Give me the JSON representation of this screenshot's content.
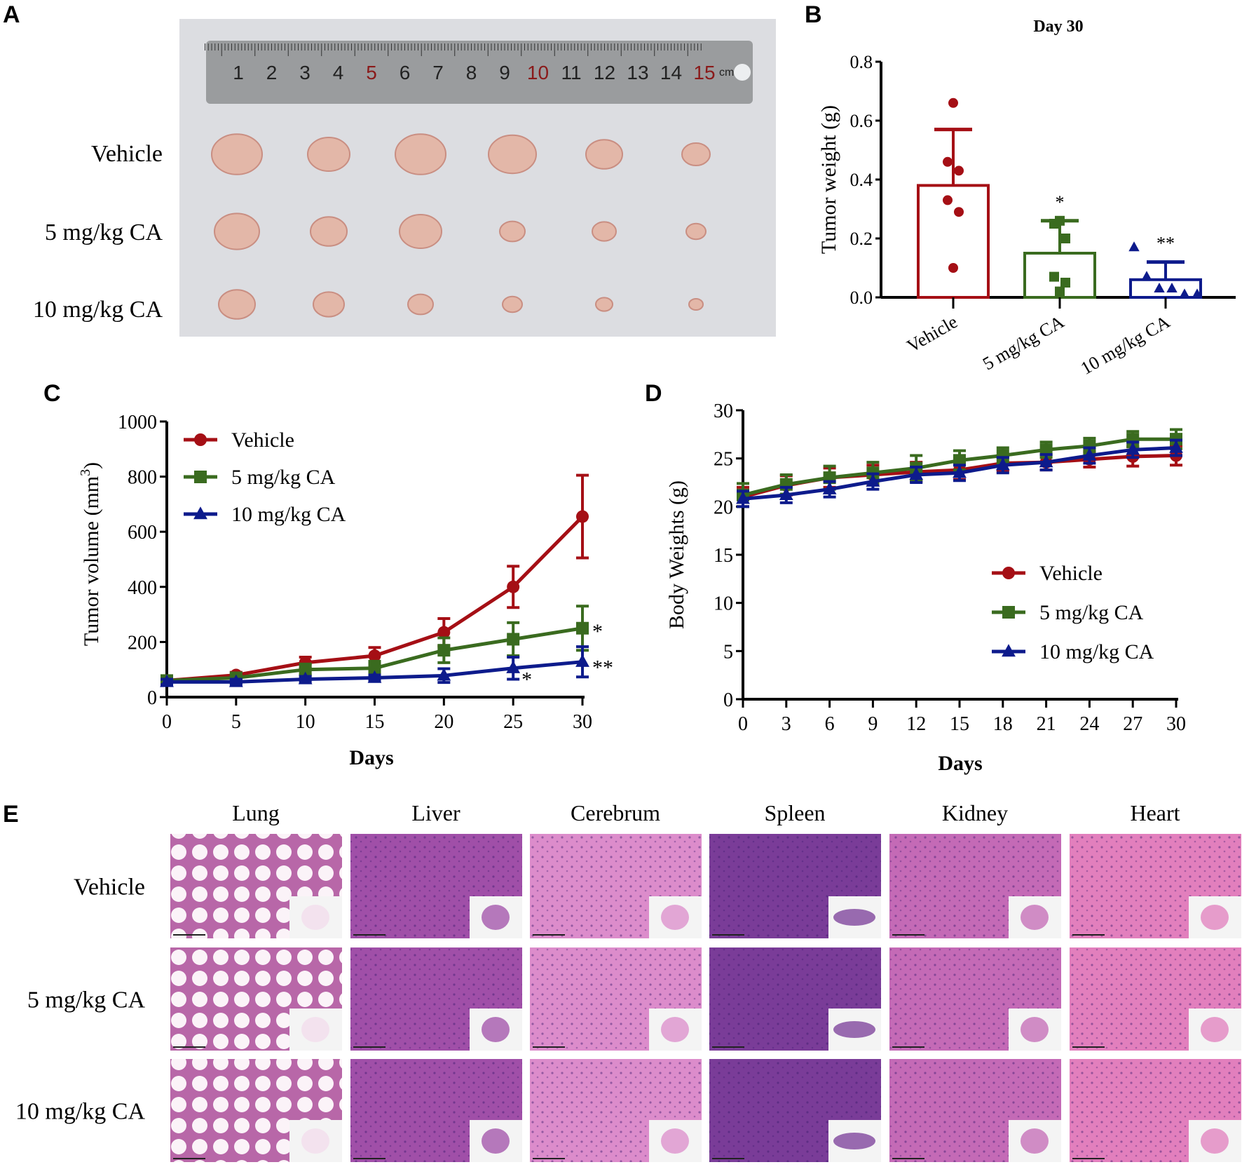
{
  "panels": {
    "a": "A",
    "b": "B",
    "c": "C",
    "d": "D",
    "e": "E"
  },
  "photo": {
    "row_labels": [
      "Vehicle",
      "5 mg/kg CA",
      "10 mg/kg CA"
    ],
    "ruler_numbers": [
      "1",
      "2",
      "3",
      "4",
      "5",
      "6",
      "7",
      "8",
      "9",
      "10",
      "11",
      "12",
      "13",
      "14",
      "15"
    ],
    "ruler_unit": "cm"
  },
  "histology": {
    "columns": [
      "Lung",
      "Liver",
      "Cerebrum",
      "Spleen",
      "Kidney",
      "Heart"
    ],
    "rows": [
      "Vehicle",
      "5 mg/kg CA",
      "10 mg/kg CA"
    ],
    "colors": [
      "#f3dcec",
      "#a04fa8",
      "#dc8ccb",
      "#7a3c98",
      "#c46ab6",
      "#e27fbd"
    ]
  },
  "colors": {
    "vehicle": "#a50f15",
    "ca5": "#3a6b1f",
    "ca10": "#0d1b8c"
  },
  "chart_data": [
    {
      "type": "bar",
      "title": "Day 30",
      "xlabel": "",
      "ylabel": "Tumor weight (g)",
      "categories": [
        "Vehicle",
        "5 mg/kg CA",
        "10 mg/kg CA"
      ],
      "values": [
        0.38,
        0.15,
        0.06
      ],
      "errors": [
        0.19,
        0.11,
        0.06
      ],
      "points": [
        [
          0.66,
          0.46,
          0.43,
          0.33,
          0.29,
          0.1
        ],
        [
          0.26,
          0.25,
          0.2,
          0.07,
          0.05,
          0.02
        ],
        [
          0.17,
          0.07,
          0.03,
          0.03,
          0.01,
          0.01
        ]
      ],
      "markers": [
        "circle",
        "square",
        "triangle"
      ],
      "significance": [
        "",
        "*",
        "**"
      ],
      "ylim": [
        0,
        0.8
      ],
      "yticks": [
        "0.0",
        "0.2",
        "0.4",
        "0.6",
        "0.8"
      ]
    },
    {
      "type": "line",
      "title": "",
      "xlabel": "Days",
      "ylabel": "Tumor volume (mm",
      "ylabel_sup": "3",
      "ylabel_end": ")",
      "x": [
        0,
        5,
        10,
        15,
        20,
        25,
        30
      ],
      "xlim": [
        0,
        30
      ],
      "ylim": [
        0,
        1000
      ],
      "xticks": [
        "0",
        "5",
        "10",
        "15",
        "20",
        "25",
        "30"
      ],
      "yticks": [
        "0",
        "200",
        "400",
        "600",
        "800",
        "1000"
      ],
      "legend": "top-left",
      "series": [
        {
          "name": "Vehicle",
          "values": [
            60,
            80,
            125,
            150,
            235,
            400,
            655
          ],
          "errors": [
            10,
            10,
            20,
            30,
            50,
            75,
            150
          ],
          "marker": "circle",
          "significance": ""
        },
        {
          "name": "5 mg/kg CA",
          "values": [
            60,
            70,
            100,
            105,
            170,
            210,
            250
          ],
          "errors": [
            10,
            10,
            20,
            25,
            45,
            60,
            80
          ],
          "marker": "square",
          "significance": "*"
        },
        {
          "name": "10 mg/kg CA",
          "values": [
            55,
            55,
            65,
            70,
            78,
            105,
            128
          ],
          "errors": [
            10,
            10,
            10,
            10,
            25,
            40,
            55
          ],
          "marker": "triangle",
          "significance": "**",
          "significance_d25": "*"
        }
      ]
    },
    {
      "type": "line",
      "title": "",
      "xlabel": "Days",
      "ylabel": "Body Weights (g)",
      "x": [
        0,
        3,
        6,
        9,
        12,
        15,
        18,
        21,
        24,
        27,
        30
      ],
      "xlim": [
        0,
        30
      ],
      "ylim": [
        0,
        30
      ],
      "xticks": [
        "0",
        "3",
        "6",
        "9",
        "12",
        "15",
        "18",
        "21",
        "24",
        "27",
        "30"
      ],
      "yticks": [
        "0",
        "5",
        "10",
        "15",
        "20",
        "25",
        "30"
      ],
      "legend": "center-right",
      "series": [
        {
          "name": "Vehicle",
          "values": [
            21.0,
            22.2,
            23.0,
            23.3,
            23.6,
            23.8,
            24.5,
            24.6,
            24.9,
            25.2,
            25.3
          ],
          "errors": [
            1,
            1,
            1,
            1,
            1,
            1,
            0.8,
            0.8,
            0.8,
            1,
            1
          ],
          "marker": "circle"
        },
        {
          "name": "5 mg/kg CA",
          "values": [
            21.2,
            22.3,
            23.0,
            23.5,
            24.0,
            24.8,
            25.3,
            25.9,
            26.3,
            27.0,
            27.0
          ],
          "errors": [
            1.2,
            1,
            1.2,
            1.1,
            1.3,
            1,
            0.8,
            0.8,
            0.8,
            0.8,
            1
          ],
          "marker": "square"
        },
        {
          "name": "10 mg/kg CA",
          "values": [
            20.8,
            21.2,
            21.8,
            22.6,
            23.3,
            23.5,
            24.3,
            24.6,
            25.3,
            25.9,
            26.1
          ],
          "errors": [
            0.8,
            0.8,
            0.8,
            0.8,
            0.8,
            0.8,
            0.8,
            0.8,
            0.8,
            0.8,
            0.8
          ],
          "marker": "triangle"
        }
      ]
    }
  ]
}
